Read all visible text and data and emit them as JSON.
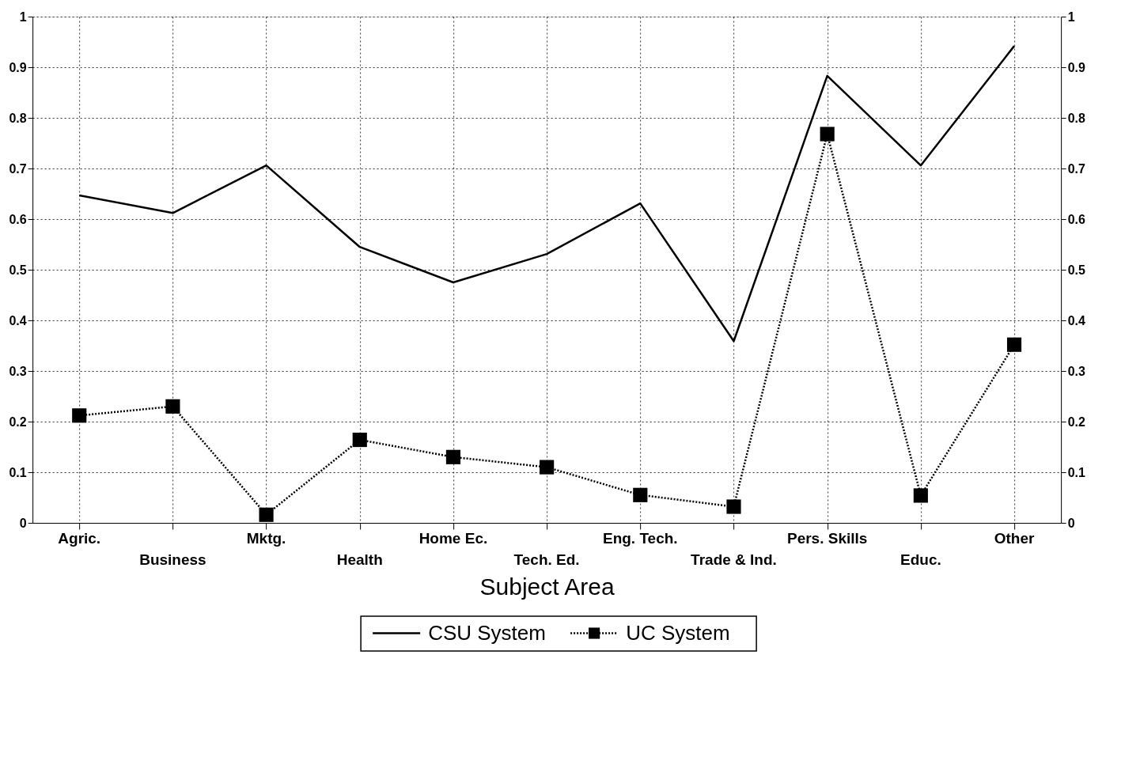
{
  "chart_data": {
    "type": "line",
    "xlabel": "Subject Area",
    "categories": [
      "Agric.",
      "Business",
      "Mktg.",
      "Health",
      "Home Ec.",
      "Tech. Ed.",
      "Eng. Tech.",
      "Trade & Ind.",
      "Pers. Skills",
      "Educ.",
      "Other"
    ],
    "series": [
      {
        "name": "CSU System",
        "color": "#000000",
        "line_style": "solid",
        "marker": "none",
        "values": [
          0.647,
          0.612,
          0.706,
          0.545,
          0.475,
          0.531,
          0.631,
          0.359,
          0.883,
          0.706,
          0.942
        ]
      },
      {
        "name": "UC System",
        "color": "#000000",
        "line_style": "dotted",
        "marker": "square",
        "values": [
          0.212,
          0.23,
          0.016,
          0.164,
          0.13,
          0.11,
          0.055,
          0.032,
          0.768,
          0.054,
          0.352
        ]
      }
    ],
    "ylim": [
      0,
      1
    ],
    "yticks": [
      0,
      0.1,
      0.2,
      0.3,
      0.4,
      0.5,
      0.6,
      0.7,
      0.8,
      0.9,
      1
    ],
    "y2lim": [
      0,
      1
    ],
    "y2ticks": [
      0,
      0.1,
      0.2,
      0.3,
      0.4,
      0.5,
      0.6,
      0.7,
      0.8,
      0.9,
      1
    ],
    "grid": true,
    "legend": "bottom"
  }
}
